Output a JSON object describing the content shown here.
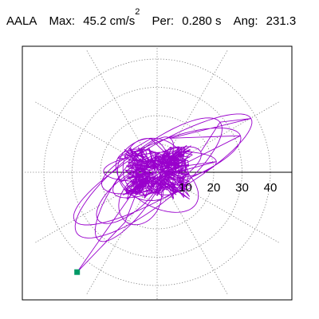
{
  "header": {
    "station": "AALA",
    "max_label": "Max:",
    "max_value": "45.2 cm/s",
    "max_exp": "2",
    "per_label": "Per:",
    "per_value": "0.280 s",
    "ang_label": "Ang:",
    "ang_value": "231.3"
  },
  "chart_data": {
    "type": "polar-orbit",
    "radial_ticks": [
      10,
      20,
      30,
      40
    ],
    "rmax": 50,
    "angular_grid_step_deg": 30,
    "grid": true,
    "max_point_angle_deg": 231.3,
    "max_point_radius": 45.2,
    "colors": {
      "trace": "#9900cc",
      "grid": "#777777",
      "marker": "#009966",
      "axis": "#000000"
    }
  }
}
